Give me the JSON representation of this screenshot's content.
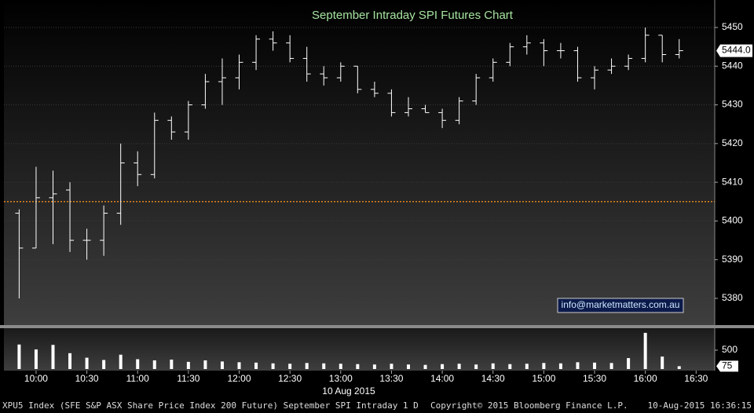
{
  "chart_data": [
    {
      "type": "ohlc",
      "title": "September Intraday SPI Futures Chart",
      "x_label": "10 Aug 2015",
      "annotation": "info@marketmatters.com.au",
      "color": "#ffffff",
      "x": [
        "09:50",
        "10:00",
        "10:10",
        "10:20",
        "10:30",
        "10:40",
        "10:50",
        "11:00",
        "11:10",
        "11:20",
        "11:30",
        "11:40",
        "11:50",
        "12:00",
        "12:10",
        "12:20",
        "12:30",
        "12:40",
        "12:50",
        "13:00",
        "13:10",
        "13:20",
        "13:30",
        "13:40",
        "13:50",
        "14:00",
        "14:10",
        "14:20",
        "14:30",
        "14:40",
        "14:50",
        "15:00",
        "15:10",
        "15:20",
        "15:30",
        "15:40",
        "15:50",
        "16:00",
        "16:10",
        "16:20"
      ],
      "open": [
        5402,
        5393,
        5406,
        5408,
        5395,
        5395,
        5402,
        5415,
        5412,
        5426,
        5423,
        5430,
        5436,
        5437,
        5441,
        5447,
        5446,
        5442,
        5438,
        5437,
        5440,
        5434,
        5433,
        5428,
        5429,
        5428,
        5426,
        5431,
        5437,
        5441,
        5445,
        5446,
        5444,
        5444,
        5437,
        5439,
        5440,
        5442,
        5448,
        5443
      ],
      "high": [
        5403,
        5414,
        5413,
        5410,
        5398,
        5404,
        5420,
        5418,
        5428,
        5427,
        5431,
        5438,
        5442,
        5443,
        5448,
        5449,
        5448,
        5445,
        5440,
        5441,
        5440,
        5436,
        5434,
        5432,
        5430,
        5429,
        5432,
        5438,
        5442,
        5446,
        5448,
        5447,
        5446,
        5445,
        5440,
        5442,
        5443,
        5450,
        5448,
        5447
      ],
      "low": [
        5380,
        5393,
        5394,
        5392,
        5390,
        5391,
        5399,
        5409,
        5411,
        5421,
        5421,
        5429,
        5430,
        5434,
        5439,
        5444,
        5441,
        5436,
        5435,
        5436,
        5433,
        5432,
        5427,
        5427,
        5428,
        5424,
        5425,
        5430,
        5436,
        5440,
        5443,
        5440,
        5442,
        5436,
        5434,
        5438,
        5439,
        5441,
        5441,
        5442
      ],
      "close": [
        5393,
        5406,
        5407,
        5395,
        5395,
        5402,
        5415,
        5412,
        5426,
        5423,
        5430,
        5436,
        5437,
        5441,
        5447,
        5446,
        5442,
        5438,
        5437,
        5440,
        5434,
        5433,
        5428,
        5429,
        5428,
        5426,
        5431,
        5437,
        5441,
        5445,
        5446,
        5444,
        5444,
        5437,
        5439,
        5440,
        5442,
        5448,
        5443,
        5444
      ],
      "last_price": {
        "value": 5444,
        "label": "5444.0"
      },
      "reference_line": {
        "value": 5405,
        "color": "#e0841c"
      },
      "xlim": [
        "09:41",
        "16:41"
      ],
      "xticks": [
        "10:00",
        "10:30",
        "11:00",
        "11:30",
        "12:00",
        "12:30",
        "13:00",
        "13:30",
        "14:00",
        "14:30",
        "15:00",
        "15:30",
        "16:00",
        "16:30"
      ],
      "ylim": [
        5373.1,
        5457.1
      ],
      "yticks": [
        5380,
        5390,
        5400,
        5410,
        5420,
        5430,
        5440,
        5450
      ],
      "grid": true
    },
    {
      "type": "bar",
      "color": "#ffffff",
      "values": [
        650,
        520,
        640,
        420,
        300,
        240,
        380,
        260,
        230,
        250,
        190,
        230,
        200,
        180,
        170,
        150,
        140,
        160,
        150,
        140,
        130,
        120,
        140,
        120,
        110,
        130,
        140,
        120,
        150,
        130,
        140,
        160,
        150,
        180,
        170,
        160,
        290,
        960,
        330,
        75
      ],
      "ylim": [
        0,
        1083
      ],
      "yticks": [
        500
      ]
    }
  ],
  "footer": {
    "left": "XPU5 Index (SFE S&P ASX Share Price Index 200 Future) September SPI Intraday 1 D",
    "center": "Copyright© 2015 Bloomberg Finance L.P.",
    "right": "10-Aug-2015 16:36:15"
  }
}
